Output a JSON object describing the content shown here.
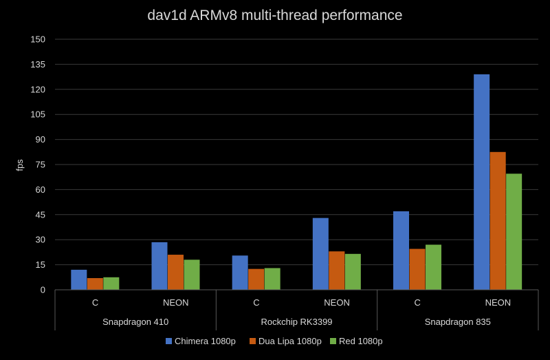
{
  "chart_data": {
    "type": "bar",
    "title": "dav1d ARMv8 multi-thread performance",
    "xlabel": "",
    "ylabel": "fps",
    "ylim": [
      0,
      150
    ],
    "yticks": [
      "0",
      "15",
      "30",
      "45",
      "60",
      "75",
      "90",
      "105",
      "120",
      "135",
      "150"
    ],
    "grid": true,
    "legend_position": "bottom",
    "groups": [
      {
        "label": "Snapdragon 410",
        "categories": [
          "C",
          "NEON"
        ]
      },
      {
        "label": "Rockchip RK3399",
        "categories": [
          "C",
          "NEON"
        ]
      },
      {
        "label": "Snapdragon 835",
        "categories": [
          "C",
          "NEON"
        ]
      }
    ],
    "series": [
      {
        "name": "Chimera 1080p",
        "color": "#4472c4",
        "values": [
          12,
          28.5,
          20.5,
          43,
          47,
          129
        ]
      },
      {
        "name": "Dua Lipa 1080p",
        "color": "#c55a11",
        "values": [
          7,
          21,
          12.5,
          23,
          24.5,
          82.5
        ]
      },
      {
        "name": "Red 1080p",
        "color": "#70ad47",
        "values": [
          7.5,
          18,
          13,
          21.5,
          27,
          69.5
        ]
      }
    ]
  }
}
